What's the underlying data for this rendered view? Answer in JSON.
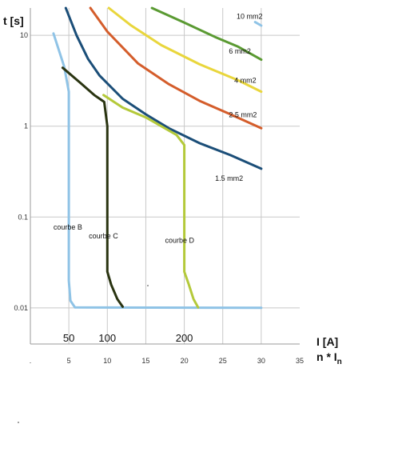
{
  "chart_data": {
    "type": "line",
    "ylabel": "t [s]",
    "xlabel": "I [A]",
    "xlabel2_main": "n * I",
    "xlabel2_sub": "n",
    "xlim": [
      0,
      35
    ],
    "ylim": [
      0.004,
      20
    ],
    "yscale": "log",
    "grid": true,
    "legend": "none",
    "x_ticks": [
      5,
      10,
      15,
      20,
      25,
      30,
      35
    ],
    "x_tick_labels": [
      "5",
      "10",
      "15",
      "20",
      "25",
      "30",
      "35"
    ],
    "y_ticks": [
      10,
      1,
      0.1,
      0.01
    ],
    "y_tick_labels": [
      "10",
      "1",
      "0.1",
      "0.01"
    ],
    "multiples": [
      {
        "x": 5,
        "label": "50"
      },
      {
        "x": 10,
        "label": "100"
      },
      {
        "x": 20,
        "label": "200"
      }
    ],
    "series": [
      {
        "name": "10 mm2",
        "color": "#8fc3e6",
        "label_at": [
          26.8,
          15.2
        ],
        "points": [
          [
            29.2,
            14.0
          ],
          [
            30.0,
            12.8
          ]
        ]
      },
      {
        "name": "6 mm2",
        "color": "#5a9a32",
        "label_at": [
          25.8,
          6.3
        ],
        "points": [
          [
            15.8,
            20.0
          ],
          [
            20.0,
            13.8
          ],
          [
            24.0,
            9.6
          ],
          [
            27.0,
            7.5
          ],
          [
            30.0,
            5.4
          ]
        ]
      },
      {
        "name": "4 mm2",
        "color": "#e9d63c",
        "label_at": [
          26.5,
          3.0
        ],
        "points": [
          [
            10.2,
            20.0
          ],
          [
            13.0,
            13.0
          ],
          [
            17.0,
            7.8
          ],
          [
            22.0,
            4.8
          ],
          [
            27.0,
            3.2
          ],
          [
            30.0,
            2.4
          ]
        ]
      },
      {
        "name": "2.5 mm2",
        "color": "#d45d2b",
        "label_at": [
          25.8,
          1.25
        ],
        "points": [
          [
            7.8,
            20.0
          ],
          [
            10.0,
            11.0
          ],
          [
            14.0,
            4.9
          ],
          [
            18.0,
            2.9
          ],
          [
            22.0,
            1.9
          ],
          [
            26.0,
            1.35
          ],
          [
            30.0,
            0.95
          ]
        ]
      },
      {
        "name": "1.5 mm2",
        "color": "#1b4e78",
        "label_at": [
          24.0,
          0.25
        ],
        "points": [
          [
            4.6,
            20.0
          ],
          [
            6.0,
            10.0
          ],
          [
            7.5,
            5.5
          ],
          [
            9.0,
            3.6
          ],
          [
            12.0,
            2.0
          ],
          [
            15.0,
            1.35
          ],
          [
            18.0,
            0.95
          ],
          [
            22.0,
            0.65
          ],
          [
            26.0,
            0.48
          ],
          [
            30.0,
            0.34
          ]
        ]
      },
      {
        "name": "courbe B",
        "color": "#8fc3e6",
        "label_at": [
          3.0,
          0.073
        ],
        "points": [
          [
            3.0,
            10.5
          ],
          [
            4.4,
            4.5
          ],
          [
            5.0,
            2.4
          ],
          [
            5.0,
            0.02
          ],
          [
            5.2,
            0.012
          ],
          [
            5.8,
            0.0101
          ],
          [
            30.0,
            0.01
          ]
        ]
      },
      {
        "name": "courbe C",
        "color": "#2a3411",
        "label_at": [
          7.6,
          0.058
        ],
        "points": [
          [
            4.2,
            4.4
          ],
          [
            6.5,
            3.0
          ],
          [
            8.3,
            2.2
          ],
          [
            9.6,
            1.85
          ],
          [
            10.0,
            1.0
          ],
          [
            10.0,
            0.025
          ],
          [
            10.5,
            0.018
          ],
          [
            11.3,
            0.0125
          ],
          [
            12.0,
            0.0103
          ]
        ]
      },
      {
        "name": "courbe D",
        "color": "#b4c93a",
        "label_at": [
          17.5,
          0.052
        ],
        "points": [
          [
            9.5,
            2.2
          ],
          [
            12.0,
            1.6
          ],
          [
            15.0,
            1.25
          ],
          [
            17.0,
            1.0
          ],
          [
            19.0,
            0.8
          ],
          [
            20.0,
            0.62
          ],
          [
            20.0,
            0.025
          ],
          [
            20.6,
            0.018
          ],
          [
            21.2,
            0.0125
          ],
          [
            21.8,
            0.0101
          ]
        ]
      }
    ]
  }
}
